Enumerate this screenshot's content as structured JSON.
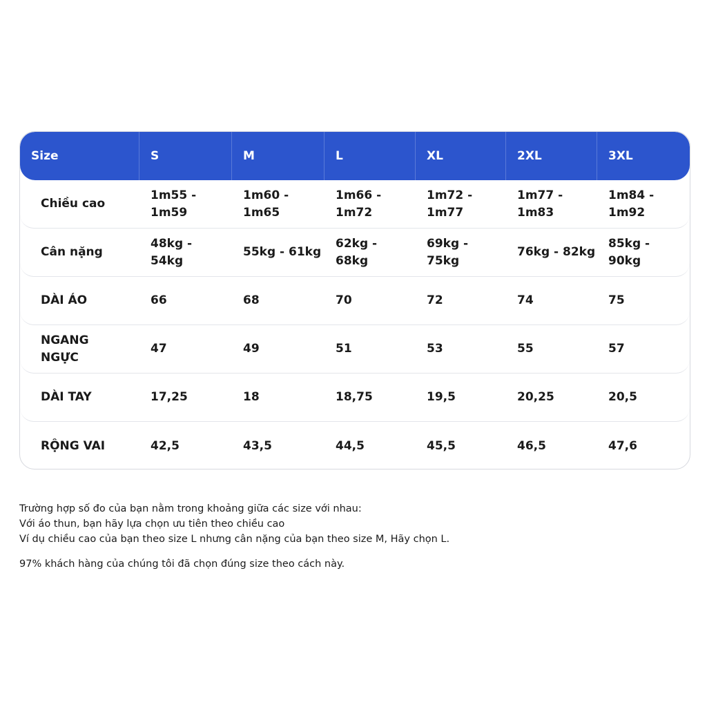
{
  "table": {
    "columns": [
      "Size",
      "S",
      "M",
      "L",
      "XL",
      "2XL",
      "3XL"
    ],
    "rows": [
      {
        "label": "Chiều cao",
        "values": [
          "1m55 -\n1m59",
          "1m60 -\n1m65",
          "1m66 -\n1m72",
          "1m72 -\n1m77",
          "1m77 -\n1m83",
          "1m84 -\n1m92"
        ]
      },
      {
        "label": "Cân nặng",
        "values": [
          "48kg -\n54kg",
          "55kg - 61kg",
          "62kg -\n68kg",
          "69kg -\n75kg",
          "76kg - 82kg",
          "85kg -\n90kg"
        ]
      },
      {
        "label": "DÀI ÁO",
        "values": [
          "66",
          "68",
          "70",
          "72",
          "74",
          "75"
        ]
      },
      {
        "label": "NGANG\nNGỰC",
        "values": [
          "47",
          "49",
          "51",
          "53",
          "55",
          "57"
        ]
      },
      {
        "label": "DÀI TAY",
        "values": [
          "17,25",
          "18",
          "18,75",
          "19,5",
          "20,25",
          "20,5"
        ]
      },
      {
        "label": "RỘNG VAI",
        "values": [
          "42,5",
          "43,5",
          "44,5",
          "45,5",
          "46,5",
          "47,6"
        ]
      }
    ]
  },
  "notes": {
    "line1": "Trường hợp số đo của bạn nằm trong khoảng giữa các size với nhau:",
    "line2": "Với áo thun, bạn hãy lựa chọn ưu tiên theo chiều cao",
    "line3": "Ví dụ chiều cao của bạn theo size L nhưng cân nặng của bạn theo size M, Hãy chọn L.",
    "line4": "97% khách hàng của chúng tôi đã chọn đúng size theo cách này."
  },
  "colors": {
    "header_bg": "#2c55cd",
    "header_text": "#ffffff",
    "border": "#d6d8de"
  }
}
